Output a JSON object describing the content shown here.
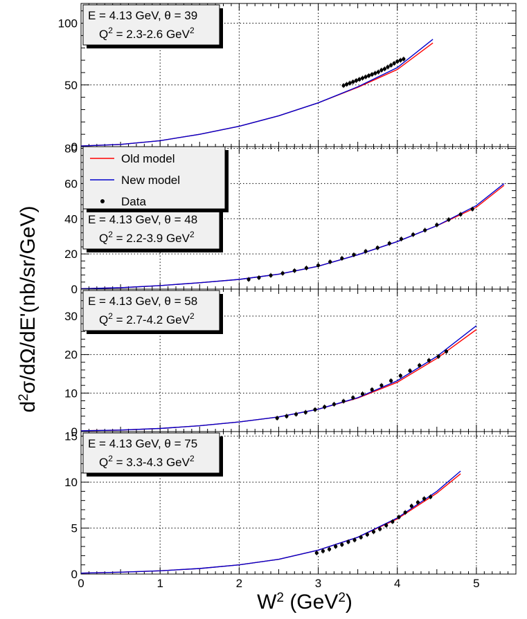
{
  "chart_data": {
    "type": "line",
    "xlabel": "W² (GeV²)",
    "ylabel": "d²σ/dΩ/dE'(nb/sr/GeV)",
    "xlim": [
      0,
      5.5
    ],
    "x_ticks": [
      "0",
      "1",
      "2",
      "3",
      "4",
      "5"
    ],
    "grid": true,
    "legend": {
      "entries": [
        {
          "label": "Old model",
          "color": "#ff0000",
          "kind": "line"
        },
        {
          "label": "New model",
          "color": "#0000cc",
          "kind": "line"
        },
        {
          "label": "Data",
          "color": "#000000",
          "kind": "marker"
        }
      ],
      "panel": 1,
      "placement": "top-left"
    },
    "panels": [
      {
        "info_line1": "E = 4.13 GeV, θ = 39",
        "info_line2": "Q² = 2.3-2.6 GeV²",
        "ylim": [
          0,
          116
        ],
        "y_ticks": [
          "0",
          "50",
          "100"
        ],
        "series": [
          {
            "name": "Old model",
            "x": [
              0,
              0.5,
              1,
              1.5,
              2,
              2.5,
              3,
              3.5,
              4,
              4.45
            ],
            "y": [
              0.5,
              1.8,
              4.8,
              10,
              16.5,
              25,
              35.5,
              48,
              62.5,
              84
            ]
          },
          {
            "name": "New model",
            "x": [
              0,
              0.5,
              1,
              1.5,
              2,
              2.5,
              3,
              3.5,
              4,
              4.45
            ],
            "y": [
              0.5,
              1.8,
              4.8,
              10,
              16.5,
              25,
              35.5,
              48.5,
              64,
              87
            ]
          },
          {
            "name": "Data",
            "x": [
              3.32,
              3.36,
              3.4,
              3.44,
              3.48,
              3.52,
              3.56,
              3.6,
              3.64,
              3.68,
              3.72,
              3.76,
              3.8,
              3.84,
              3.88,
              3.92,
              3.96,
              4.0,
              4.04,
              4.08
            ],
            "y": [
              49.5,
              50.5,
              51.5,
              52.5,
              53.5,
              54.5,
              55.5,
              56.5,
              57.5,
              58.5,
              59.5,
              60.5,
              62,
              63,
              64.5,
              66,
              67.5,
              69,
              70,
              71
            ]
          }
        ]
      },
      {
        "info_line1": "E = 4.13 GeV, θ = 48",
        "info_line2": "Q² = 2.2-3.9 GeV²",
        "ylim": [
          0,
          81
        ],
        "y_ticks": [
          "0",
          "20",
          "40",
          "60",
          "80"
        ],
        "series": [
          {
            "name": "Old model",
            "x": [
              0,
              0.5,
              1,
              1.5,
              2,
              2.5,
              3,
              3.5,
              4,
              4.5,
              5,
              5.35
            ],
            "y": [
              0.2,
              0.8,
              2,
              3.6,
              5.5,
              8.5,
              13,
              19.5,
              27,
              36,
              46.5,
              59
            ]
          },
          {
            "name": "New model",
            "x": [
              0,
              0.5,
              1,
              1.5,
              2,
              2.5,
              3,
              3.5,
              4,
              4.5,
              5,
              5.35
            ],
            "y": [
              0.2,
              0.8,
              2,
              3.6,
              5.5,
              8.5,
              13,
              19.5,
              27,
              36,
              47.5,
              60
            ]
          },
          {
            "name": "Data",
            "x": [
              2.12,
              2.25,
              2.4,
              2.55,
              2.7,
              2.85,
              3.0,
              3.15,
              3.3,
              3.45,
              3.6,
              3.75,
              3.9,
              4.05,
              4.2,
              4.35,
              4.5,
              4.65,
              4.8,
              4.95
            ],
            "y": [
              5.5,
              6.5,
              7.8,
              9,
              10.5,
              12,
              13.5,
              15.5,
              17.5,
              19.5,
              21.5,
              23.5,
              26,
              28.5,
              31,
              33.5,
              36.5,
              39.5,
              42.5,
              45.5
            ]
          }
        ]
      },
      {
        "info_line1": "E = 4.13 GeV, θ = 58",
        "info_line2": "Q² = 2.7-4.2 GeV²",
        "ylim": [
          0,
          37
        ],
        "y_ticks": [
          "0",
          "10",
          "20",
          "30"
        ],
        "series": [
          {
            "name": "Old model",
            "x": [
              0,
              0.5,
              1,
              1.5,
              2,
              2.5,
              3,
              3.5,
              4,
              4.5,
              5.0
            ],
            "y": [
              0.2,
              0.4,
              0.8,
              1.5,
              2.5,
              3.8,
              5.8,
              8.7,
              12.8,
              19,
              26.5
            ]
          },
          {
            "name": "New model",
            "x": [
              0,
              0.5,
              1,
              1.5,
              2,
              2.5,
              3,
              3.5,
              4,
              4.5,
              5.0
            ],
            "y": [
              0.2,
              0.4,
              0.8,
              1.5,
              2.5,
              3.8,
              5.8,
              8.8,
              13.2,
              19.5,
              27.5
            ]
          },
          {
            "name": "Data",
            "x": [
              2.48,
              2.6,
              2.72,
              2.84,
              2.96,
              3.08,
              3.2,
              3.32,
              3.44,
              3.56,
              3.68,
              3.8,
              3.92,
              4.04,
              4.16,
              4.28,
              4.4,
              4.52,
              4.62
            ],
            "y": [
              3.5,
              4.0,
              4.5,
              5.0,
              5.7,
              6.4,
              7.1,
              7.9,
              8.8,
              9.8,
              10.9,
              12.0,
              13.2,
              14.5,
              15.8,
              17.2,
              18.5,
              19.5,
              20.8
            ]
          }
        ]
      },
      {
        "info_line1": "E = 4.13 GeV, θ = 75",
        "info_line2": "Q² = 3.3-4.3 GeV²",
        "ylim": [
          0,
          15.5
        ],
        "y_ticks": [
          "0",
          "5",
          "10",
          "15"
        ],
        "series": [
          {
            "name": "Old model",
            "x": [
              0,
              0.5,
              1,
              1.5,
              2,
              2.5,
              3,
              3.5,
              4,
              4.5,
              4.8
            ],
            "y": [
              0.1,
              0.2,
              0.35,
              0.6,
              1.0,
              1.6,
              2.6,
              4.0,
              6.0,
              8.8,
              10.9
            ]
          },
          {
            "name": "New model",
            "x": [
              0,
              0.5,
              1,
              1.5,
              2,
              2.5,
              3,
              3.5,
              4,
              4.5,
              4.8
            ],
            "y": [
              0.1,
              0.2,
              0.35,
              0.6,
              1.0,
              1.6,
              2.6,
              4.0,
              6.1,
              9.0,
              11.2
            ]
          },
          {
            "name": "Data",
            "x": [
              2.98,
              3.06,
              3.14,
              3.22,
              3.3,
              3.38,
              3.46,
              3.54,
              3.62,
              3.7,
              3.78,
              3.86,
              3.94,
              4.02,
              4.1,
              4.18,
              4.26,
              4.34,
              4.42
            ],
            "y": [
              2.3,
              2.5,
              2.7,
              3.0,
              3.2,
              3.5,
              3.7,
              4.0,
              4.3,
              4.6,
              4.9,
              5.3,
              5.7,
              6.2,
              6.7,
              7.4,
              7.8,
              8.2,
              8.4
            ]
          }
        ]
      }
    ]
  }
}
